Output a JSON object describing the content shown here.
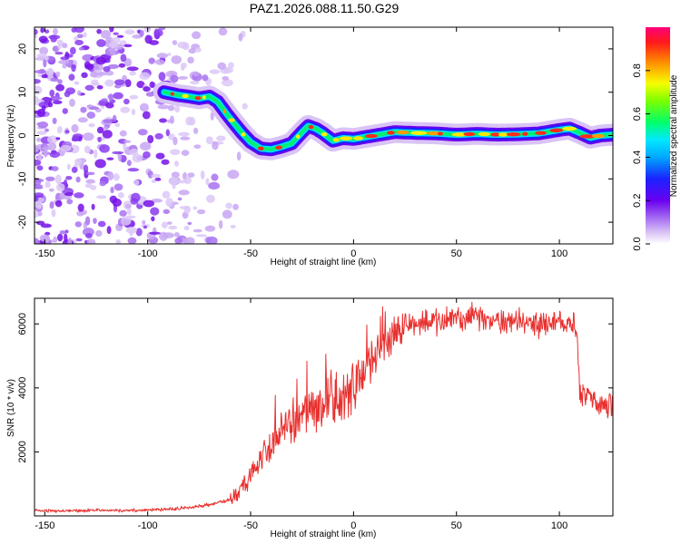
{
  "chart_data": [
    {
      "type": "heatmap",
      "title": "PAZ1.2026.088.11.50.G29",
      "xlabel": "Height of straight line (km)",
      "ylabel": "Frequency (Hz)",
      "xlim": [
        -155,
        126
      ],
      "ylim": [
        -25,
        25
      ],
      "xticks": [
        -150,
        -100,
        -50,
        0,
        50,
        100
      ],
      "yticks": [
        -20,
        -10,
        0,
        10,
        20
      ],
      "colorbar": {
        "label": "Normalized spectral amplitude",
        "range": [
          0,
          1
        ],
        "ticks": [
          "0.0",
          "0.2",
          "0.4",
          "0.6",
          "0.8"
        ]
      },
      "ridge": {
        "x": [
          -92,
          -85,
          -80,
          -75,
          -70,
          -66,
          -62,
          -58,
          -54,
          -50,
          -45,
          -40,
          -35,
          -30,
          -25,
          -22,
          -18,
          -15,
          -10,
          -5,
          0,
          10,
          20,
          30,
          40,
          50,
          60,
          70,
          80,
          90,
          100,
          105,
          110,
          115,
          120,
          126
        ],
        "y": [
          10,
          9.3,
          9,
          8.6,
          9,
          7.8,
          5.2,
          2.8,
          0.5,
          -1.5,
          -3,
          -3.2,
          -2.6,
          -1.8,
          0.8,
          2.2,
          1.5,
          0.6,
          -1.2,
          -0.6,
          -0.8,
          0,
          0.8,
          0.6,
          0.5,
          0.2,
          0.4,
          0.2,
          0.3,
          0.5,
          1.3,
          1.6,
          0.6,
          -0.5,
          0,
          0.2
        ]
      }
    },
    {
      "type": "line",
      "title": "",
      "xlabel": "Height of straight line (km)",
      "ylabel": "SNR (10 * v/v)",
      "xlim": [
        -155,
        126
      ],
      "ylim": [
        0,
        6800
      ],
      "xticks": [
        -150,
        -100,
        -50,
        0,
        50,
        100
      ],
      "yticks": [
        2000,
        4000,
        6000
      ],
      "color": "#e8312f",
      "trend": {
        "x": [
          -155,
          -100,
          -80,
          -70,
          -60,
          -55,
          -50,
          -45,
          -40,
          -35,
          -30,
          -25,
          -20,
          -15,
          -10,
          -5,
          0,
          5,
          10,
          15,
          20,
          25,
          30,
          40,
          50,
          60,
          70,
          80,
          90,
          100,
          108,
          110,
          115,
          120,
          126
        ],
        "y": [
          150,
          180,
          250,
          350,
          500,
          800,
          1200,
          1800,
          2300,
          2600,
          2900,
          3100,
          3300,
          3400,
          3500,
          3700,
          4000,
          4400,
          4900,
          5300,
          5700,
          5950,
          6050,
          6100,
          6150,
          6200,
          6100,
          6050,
          6000,
          6000,
          6000,
          3900,
          3700,
          3600,
          3400
        ]
      }
    }
  ]
}
